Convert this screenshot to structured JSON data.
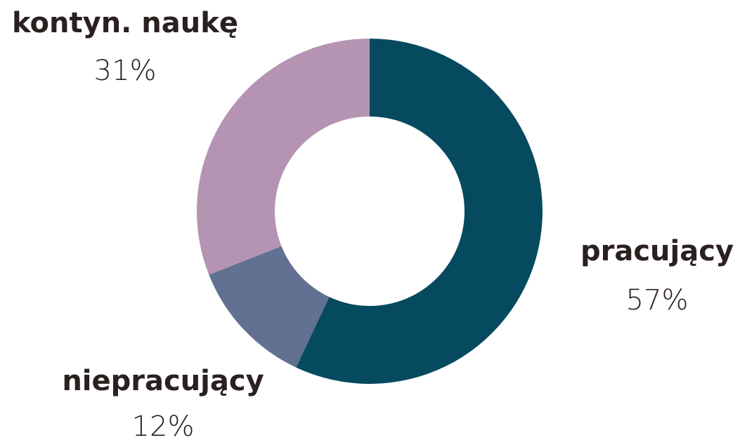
{
  "chart_data": {
    "type": "donut",
    "categories": [
      "pracujący",
      "niepracujący",
      "kontyn. naukę"
    ],
    "values": [
      57,
      12,
      31
    ],
    "value_labels": [
      "57%",
      "12%",
      "31%"
    ],
    "colors": [
      "#064a5f",
      "#627091",
      "#b594b3"
    ]
  }
}
